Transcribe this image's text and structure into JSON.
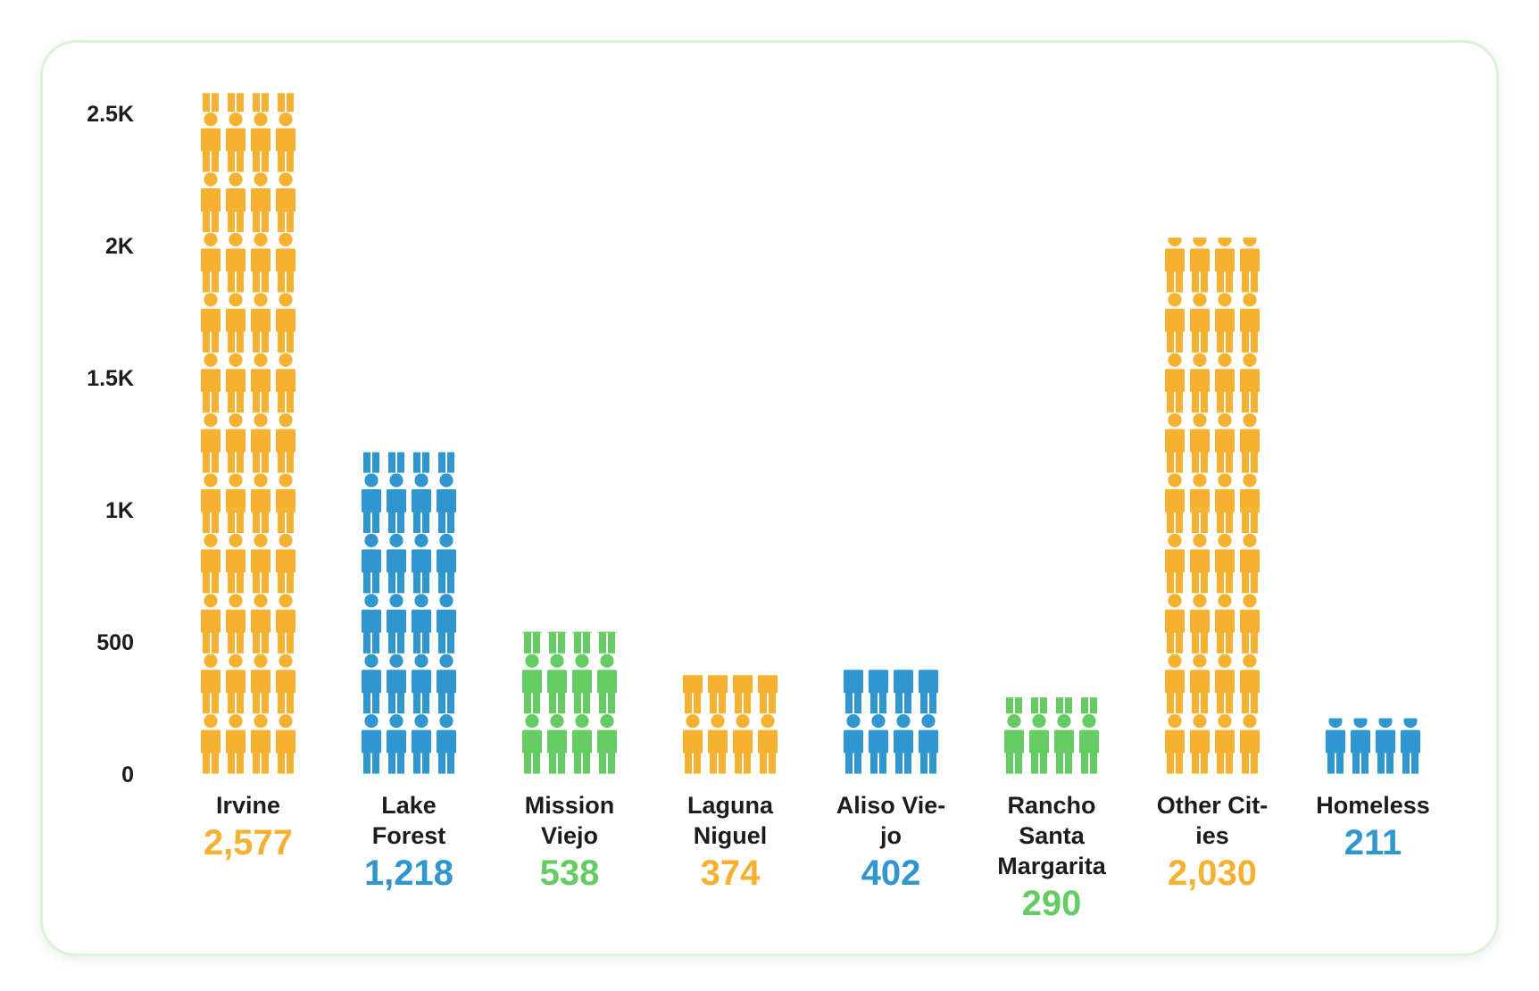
{
  "chart_data": {
    "type": "bar",
    "style": "pictograph",
    "icon": "person-icon",
    "title": "",
    "xlabel": "",
    "ylabel": "",
    "ylim": [
      0,
      2500
    ],
    "yticks": [
      0,
      500,
      1000,
      1500,
      2000,
      2500
    ],
    "ytick_labels": [
      "0",
      "500",
      "1K",
      "1.5K",
      "2K",
      "2.5K"
    ],
    "grid": false,
    "legend": "none",
    "categories": [
      "Irvine",
      "Lake Forest",
      "Mission Viejo",
      "Laguna Niguel",
      "Aliso Viejo",
      "Rancho Santa Margarita",
      "Other Cities",
      "Homeless"
    ],
    "category_label_lines": [
      [
        "Irvine"
      ],
      [
        "Lake",
        "Forest"
      ],
      [
        "Mission",
        "Viejo"
      ],
      [
        "Laguna",
        "Niguel"
      ],
      [
        "Aliso Vie-",
        "jo"
      ],
      [
        "Rancho",
        "Santa",
        "Margarita"
      ],
      [
        "Other Cit-",
        "ies"
      ],
      [
        "Homeless"
      ]
    ],
    "values": [
      2577,
      1218,
      538,
      374,
      402,
      290,
      2030,
      211
    ],
    "value_labels": [
      "2,577",
      "1,218",
      "538",
      "374",
      "402",
      "290",
      "2,030",
      "211"
    ],
    "colors": [
      "#f7b131",
      "#2f96cf",
      "#64cc63",
      "#f7b131",
      "#2f96cf",
      "#64cc63",
      "#f7b131",
      "#2f96cf"
    ]
  }
}
